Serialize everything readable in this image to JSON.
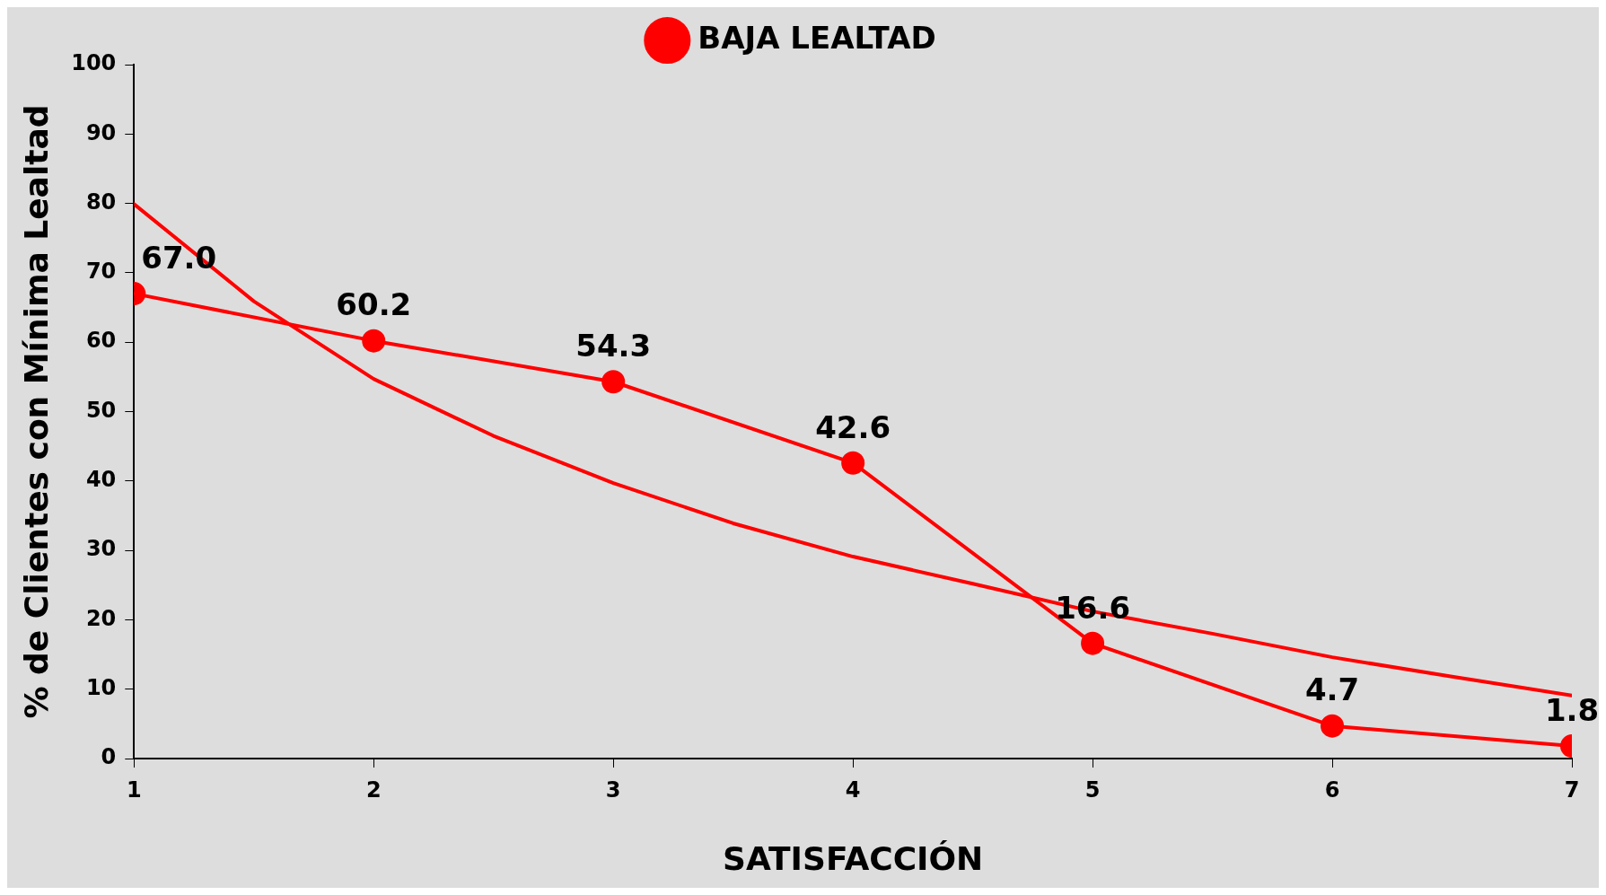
{
  "chart_data": {
    "type": "line",
    "xlabel": "SATISFACCIÓN",
    "ylabel": "% de Clientes con Mínima Lealtad",
    "xlim": [
      1,
      7
    ],
    "xticks": [
      1,
      2,
      3,
      4,
      5,
      6,
      7
    ],
    "ylim": [
      0,
      100
    ],
    "yticks": [
      0,
      10,
      20,
      30,
      40,
      50,
      60,
      70,
      80,
      90,
      100
    ],
    "grid": false,
    "legend": "top",
    "line_style": "solid",
    "series": [
      {
        "name": "BAJA LEALTAD",
        "color": "#ff0000",
        "marker": "circle",
        "x": [
          1,
          2,
          3,
          4,
          5,
          6,
          7
        ],
        "values": [
          67.0,
          60.2,
          54.3,
          42.6,
          16.6,
          4.7,
          1.8
        ],
        "value_labels": [
          "67.0",
          "60.2",
          "54.3",
          "42.6",
          "16.6",
          "4.7",
          "1.8"
        ]
      },
      {
        "type": "line",
        "color": "#ff0000",
        "marker": "none",
        "x": [
          1,
          1.5,
          2,
          2.5,
          3,
          3.5,
          4,
          4.5,
          5,
          5.5,
          6,
          6.5,
          7
        ],
        "values": [
          79.9,
          65.9,
          54.7,
          46.5,
          39.7,
          33.9,
          29.1,
          25.2,
          21.2,
          18,
          14.6,
          11.8,
          9.1
        ]
      }
    ]
  }
}
